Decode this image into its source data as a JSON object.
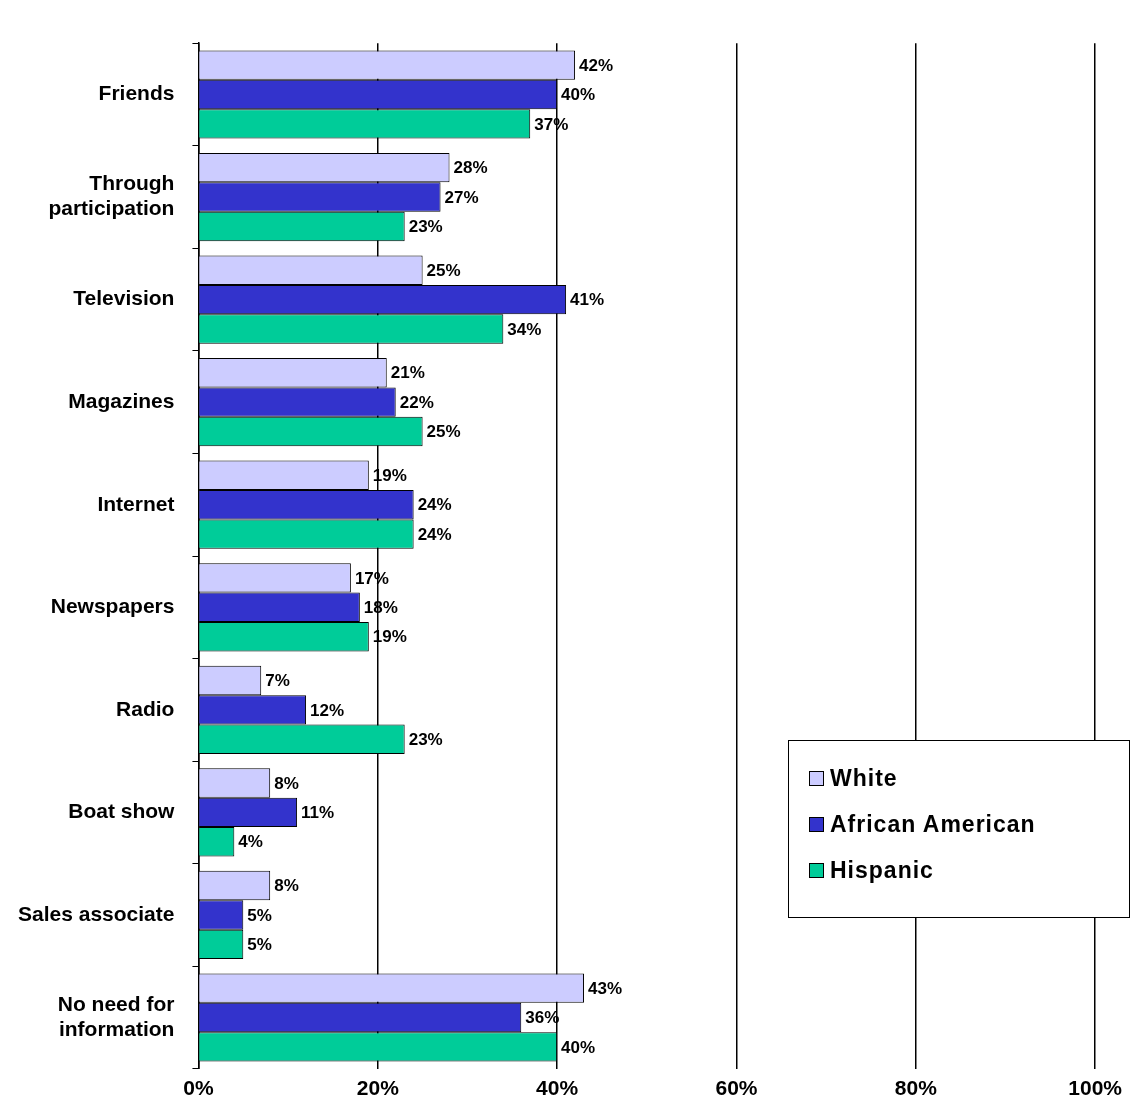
{
  "chart_data": {
    "type": "bar",
    "orientation": "horizontal",
    "categories": [
      "Friends",
      "Through participation",
      "Television",
      "Magazines",
      "Internet",
      "Newspapers",
      "Radio",
      "Boat show",
      "Sales associate",
      "No need for information"
    ],
    "series": [
      {
        "name": "White",
        "color": "#ccccff",
        "values": [
          42,
          28,
          25,
          21,
          19,
          17,
          7,
          8,
          8,
          43
        ],
        "value_labels": [
          "42%",
          "28%",
          "25%",
          "21%",
          "19%",
          "17%",
          "7%",
          "8%",
          "8%",
          "43%"
        ]
      },
      {
        "name": "African American",
        "color": "#3333cc",
        "values": [
          40,
          27,
          41,
          22,
          24,
          18,
          12,
          11,
          5,
          36
        ],
        "value_labels": [
          "40%",
          "27%",
          "41%",
          "22%",
          "24%",
          "18%",
          "12%",
          "11%",
          "5%",
          "36%"
        ]
      },
      {
        "name": "Hispanic",
        "color": "#00cc99",
        "values": [
          37,
          23,
          34,
          25,
          24,
          19,
          23,
          4,
          5,
          40
        ],
        "value_labels": [
          "37%",
          "23%",
          "34%",
          "25%",
          "24%",
          "19%",
          "23%",
          "4%",
          "5%",
          "40%"
        ]
      }
    ],
    "xlim": [
      0,
      100
    ],
    "xticks": [
      {
        "value": 0,
        "label": "0%"
      },
      {
        "value": 20,
        "label": "20%"
      },
      {
        "value": 40,
        "label": "40%"
      },
      {
        "value": 60,
        "label": "60%"
      },
      {
        "value": 80,
        "label": "80%"
      },
      {
        "value": 100,
        "label": "100%"
      }
    ],
    "grid": "x",
    "legend": "bottom right"
  }
}
